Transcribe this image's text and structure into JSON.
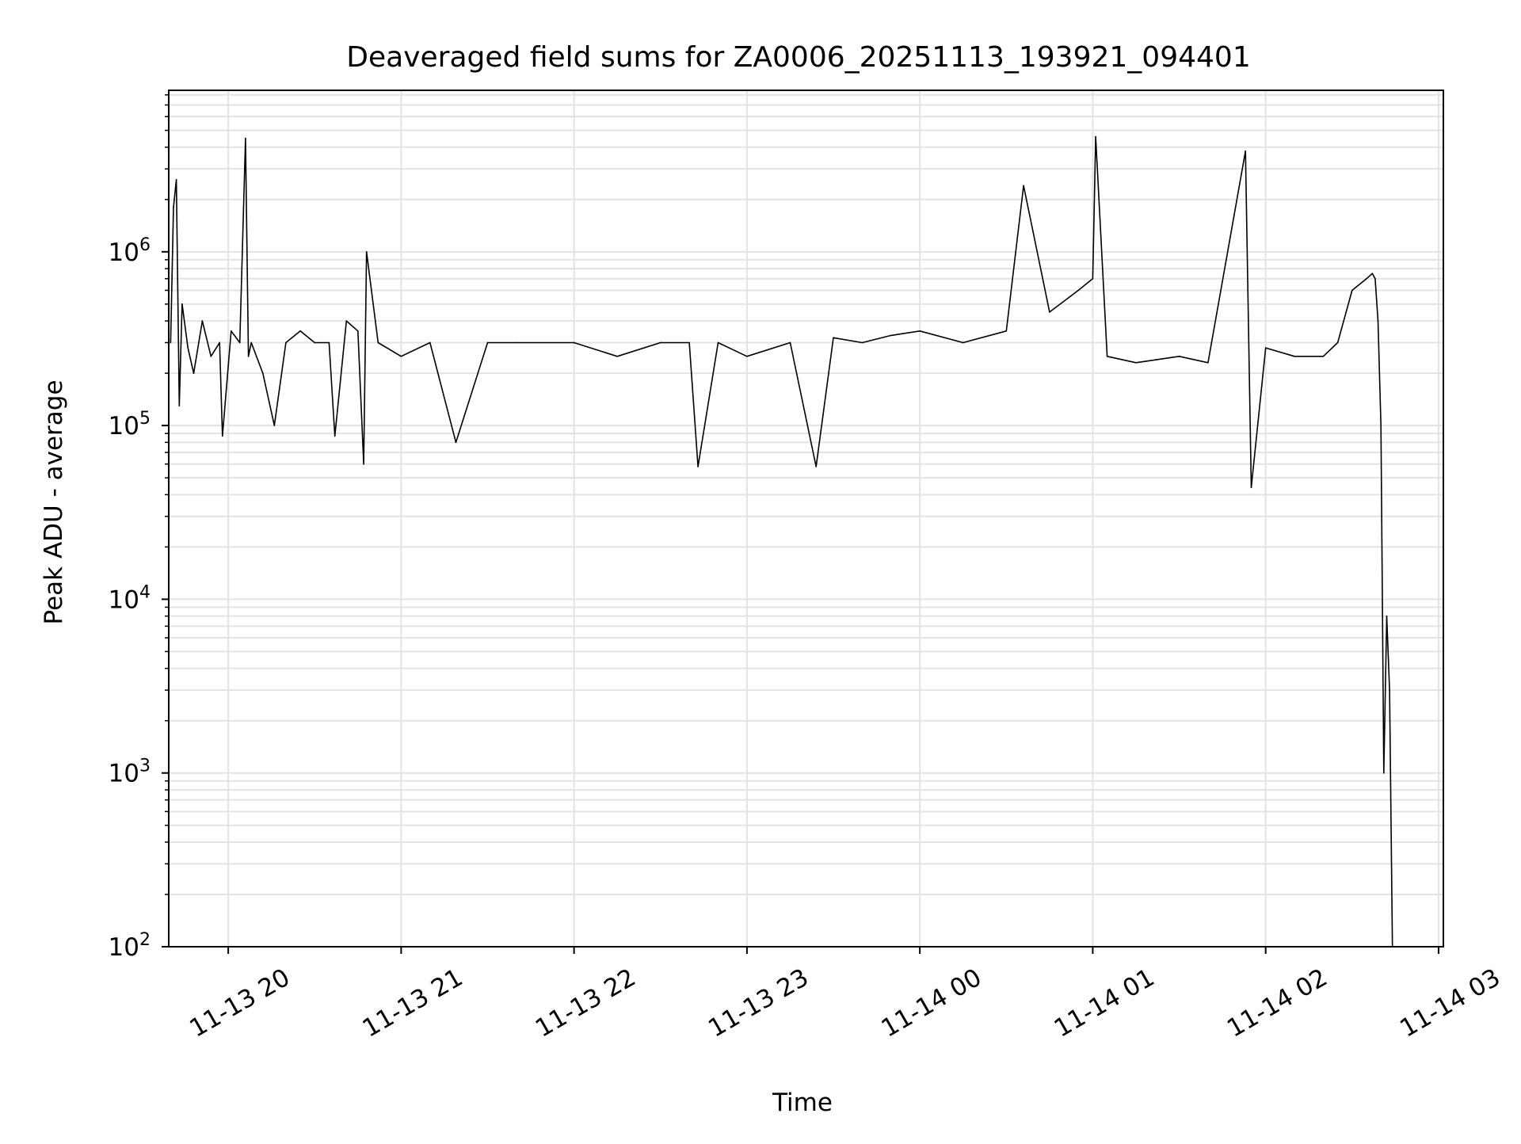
{
  "chart_data": {
    "type": "line",
    "title": "Deaveraged field sums for ZA0006_20251113_193921_094401",
    "xlabel": "Time",
    "ylabel": "Peak ADU - average",
    "yscale": "log",
    "ylim": [
      100,
      8500000
    ],
    "xlim": [
      "2025-11-13 19:39:21",
      "2025-11-14 03:01:40"
    ],
    "grid": true,
    "legend": false,
    "line_color": "#000000",
    "x_ticks": [
      {
        "time": "2025-11-13 20:00",
        "label": "11-13 20"
      },
      {
        "time": "2025-11-13 21:00",
        "label": "11-13 21"
      },
      {
        "time": "2025-11-13 22:00",
        "label": "11-13 22"
      },
      {
        "time": "2025-11-13 23:00",
        "label": "11-13 23"
      },
      {
        "time": "2025-11-14 00:00",
        "label": "11-14 00"
      },
      {
        "time": "2025-11-14 01:00",
        "label": "11-14 01"
      },
      {
        "time": "2025-11-14 02:00",
        "label": "11-14 02"
      },
      {
        "time": "2025-11-14 03:00",
        "label": "11-14 03"
      }
    ],
    "y_ticks": [
      {
        "value": 100,
        "base": "10",
        "exp": "2"
      },
      {
        "value": 1000,
        "base": "10",
        "exp": "3"
      },
      {
        "value": 10000,
        "base": "10",
        "exp": "4"
      },
      {
        "value": 100000,
        "base": "10",
        "exp": "5"
      },
      {
        "value": 1000000,
        "base": "10",
        "exp": "6"
      }
    ],
    "series": [
      {
        "x": [
          "2025-11-13 19:40:00",
          "2025-11-13 19:41:00",
          "2025-11-13 19:42:00",
          "2025-11-13 19:43:00",
          "2025-11-13 19:44:00",
          "2025-11-13 19:46:00",
          "2025-11-13 19:48:00",
          "2025-11-13 19:51:00",
          "2025-11-13 19:54:00",
          "2025-11-13 19:57:00",
          "2025-11-13 19:58:00",
          "2025-11-13 20:01:00",
          "2025-11-13 20:04:00",
          "2025-11-13 20:06:00",
          "2025-11-13 20:07:00",
          "2025-11-13 20:08:00",
          "2025-11-13 20:12:00",
          "2025-11-13 20:16:00",
          "2025-11-13 20:20:00",
          "2025-11-13 20:25:00",
          "2025-11-13 20:30:00",
          "2025-11-13 20:35:00",
          "2025-11-13 20:37:00",
          "2025-11-13 20:41:00",
          "2025-11-13 20:45:00",
          "2025-11-13 20:47:00",
          "2025-11-13 20:48:00",
          "2025-11-13 20:52:00",
          "2025-11-13 21:00:00",
          "2025-11-13 21:10:00",
          "2025-11-13 21:19:00",
          "2025-11-13 21:30:00",
          "2025-11-13 21:40:00",
          "2025-11-13 22:00:00",
          "2025-11-13 22:15:00",
          "2025-11-13 22:30:00",
          "2025-11-13 22:40:00",
          "2025-11-13 22:43:00",
          "2025-11-13 22:50:00",
          "2025-11-13 23:00:00",
          "2025-11-13 23:15:00",
          "2025-11-13 23:24:00",
          "2025-11-13 23:30:00",
          "2025-11-13 23:40:00",
          "2025-11-13 23:50:00",
          "2025-11-14 00:00:00",
          "2025-11-14 00:15:00",
          "2025-11-14 00:30:00",
          "2025-11-14 00:36:00",
          "2025-11-14 00:45:00",
          "2025-11-14 00:55:00",
          "2025-11-14 01:00:00",
          "2025-11-14 01:01:00",
          "2025-11-14 01:05:00",
          "2025-11-14 01:15:00",
          "2025-11-14 01:30:00",
          "2025-11-14 01:40:00",
          "2025-11-14 01:53:00",
          "2025-11-14 01:55:00",
          "2025-11-14 02:00:00",
          "2025-11-14 02:10:00",
          "2025-11-14 02:20:00",
          "2025-11-14 02:25:00",
          "2025-11-14 02:30:00",
          "2025-11-14 02:35:00",
          "2025-11-14 02:37:00",
          "2025-11-14 02:38:00",
          "2025-11-14 02:39:00",
          "2025-11-14 02:40:00",
          "2025-11-14 02:41:00",
          "2025-11-14 02:42:00",
          "2025-11-14 02:43:00",
          "2025-11-14 02:44:00"
        ],
        "y": [
          300000,
          1800000,
          2600000,
          130000,
          500000,
          280000,
          200000,
          400000,
          250000,
          300000,
          87000,
          350000,
          300000,
          4500000,
          250000,
          300000,
          200000,
          100000,
          300000,
          350000,
          300000,
          300000,
          87000,
          400000,
          350000,
          60000,
          1000000,
          300000,
          250000,
          300000,
          80000,
          300000,
          300000,
          300000,
          250000,
          300000,
          300000,
          58000,
          300000,
          250000,
          300000,
          58000,
          320000,
          300000,
          330000,
          350000,
          300000,
          350000,
          2400000,
          450000,
          600000,
          700000,
          4600000,
          250000,
          230000,
          250000,
          230000,
          3800000,
          44000,
          280000,
          250000,
          250000,
          300000,
          600000,
          700000,
          750000,
          700000,
          400000,
          100000,
          1000,
          8000,
          3000,
          100
        ]
      }
    ]
  }
}
